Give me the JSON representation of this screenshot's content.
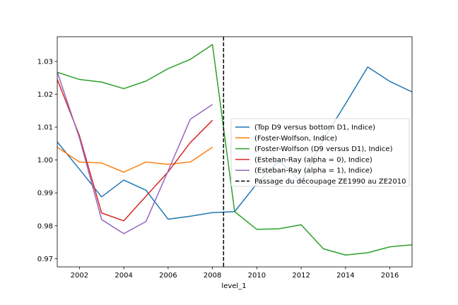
{
  "chart_data": {
    "type": "line",
    "title": "",
    "xlabel": "level_1",
    "ylabel": "",
    "xlim": [
      2001,
      2017
    ],
    "ylim": [
      0.9675,
      1.0375
    ],
    "xticks": [
      2002,
      2004,
      2006,
      2008,
      2010,
      2012,
      2014,
      2016
    ],
    "yticks": [
      0.97,
      0.98,
      0.99,
      1.0,
      1.01,
      1.02,
      1.03
    ],
    "ytick_labels": [
      "0.97",
      "0.98",
      "0.99",
      "1.00",
      "1.01",
      "1.02",
      "1.03"
    ],
    "legend_position": "center-right",
    "grid": false,
    "series": [
      {
        "name": "(Top D9 versus bottom D1, Indice)",
        "color": "#1f77b4",
        "x": [
          2001,
          2002,
          2003,
          2004,
          2005,
          2006,
          2007,
          2008,
          2009,
          2010,
          2011,
          2012,
          2013,
          2014,
          2015,
          2016,
          2017
        ],
        "values": [
          1.0055,
          0.9972,
          0.9888,
          0.9939,
          0.9908,
          0.982,
          0.9829,
          0.984,
          0.9843,
          0.9928,
          0.9998,
          0.9934,
          1.0062,
          1.0171,
          1.0283,
          1.0239,
          1.0207
        ]
      },
      {
        "name": "(Foster-Wolfson, Indice)",
        "color": "#ff7f0e",
        "x": [
          2001,
          2002,
          2003,
          2004,
          2005,
          2006,
          2007,
          2008
        ],
        "values": [
          1.0039,
          0.9994,
          0.9991,
          0.9963,
          0.9994,
          0.9987,
          0.9994,
          1.0039
        ]
      },
      {
        "name": "(Foster-Wolfson (D9 versus D1), Indice)",
        "color": "#2ca02c",
        "x": [
          2001,
          2002,
          2003,
          2004,
          2005,
          2006,
          2007,
          2008,
          2009,
          2010,
          2011,
          2012,
          2013,
          2014,
          2015,
          2016,
          2017
        ],
        "values": [
          1.0267,
          1.0245,
          1.0237,
          1.0217,
          1.024,
          1.0278,
          1.0306,
          1.0351,
          0.9843,
          0.9789,
          0.9791,
          0.9803,
          0.973,
          0.9711,
          0.9718,
          0.9736,
          0.9742
        ]
      },
      {
        "name": "(Esteban-Ray (alpha = 0), Indice)",
        "color": "#d62728",
        "x": [
          2001,
          2002,
          2003,
          2004,
          2005,
          2006,
          2007,
          2008
        ],
        "values": [
          1.0245,
          1.0074,
          0.9839,
          0.9815,
          0.989,
          0.9964,
          1.0053,
          1.0121
        ]
      },
      {
        "name": "(Esteban-Ray (alpha = 1), Indice)",
        "color": "#9467bd",
        "x": [
          2001,
          2002,
          2003,
          2004,
          2005,
          2006,
          2007,
          2008
        ],
        "values": [
          1.0268,
          1.0067,
          0.9819,
          0.9776,
          0.9813,
          0.9967,
          1.0124,
          1.0169
        ]
      }
    ],
    "vline": {
      "x": 2008.5,
      "label": "Passage du découpage ZE1990 au ZE2010",
      "color": "#000000",
      "style": "dashed"
    }
  }
}
